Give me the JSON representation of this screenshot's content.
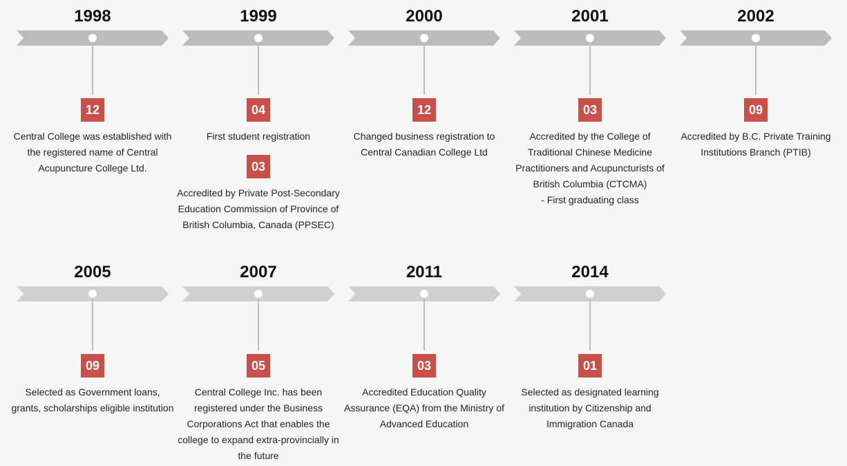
{
  "events": [
    {
      "year": "1998",
      "entries": [
        {
          "month": "12",
          "text": "Central College was established with the registered name of Central Acupuncture College Ltd."
        }
      ]
    },
    {
      "year": "1999",
      "entries": [
        {
          "month": "04",
          "text": "First student registration"
        },
        {
          "month": "03",
          "text": "Accredited by Private Post-Secondary Education Commission of Province of British Columbia, Canada (PPSEC)"
        }
      ]
    },
    {
      "year": "2000",
      "entries": [
        {
          "month": "12",
          "text": "Changed business registration to Central Canadian College Ltd"
        }
      ]
    },
    {
      "year": "2001",
      "entries": [
        {
          "month": "03",
          "text": "Accredited by the College of Traditional Chinese Medicine Practitioners and Acupuncturists of British Columbia (CTCMA)",
          "text2": "- First graduating class"
        }
      ]
    },
    {
      "year": "2002",
      "entries": [
        {
          "month": "09",
          "text": "Accredited by B.C. Private Training Institutions Branch (PTIB)"
        }
      ]
    },
    {
      "year": "2005",
      "entries": [
        {
          "month": "09",
          "text": "Selected as Government loans, grants, scholarships eligible institution"
        }
      ]
    },
    {
      "year": "2007",
      "entries": [
        {
          "month": "05",
          "text": "Central College Inc. has been registered under the Business Corporations Act that enables the college to expand extra-provincially in the future"
        }
      ]
    },
    {
      "year": "2011",
      "entries": [
        {
          "month": "03",
          "text": "Accredited Education Quality Assurance (EQA) from the Ministry of Advanced Education"
        }
      ]
    },
    {
      "year": "2014",
      "entries": [
        {
          "month": "01",
          "text": "Selected as designated learning institution by Citizenship and Immigration Canada"
        }
      ]
    }
  ],
  "colors": {
    "band_row1": "#bcbcbc",
    "band_row2": "#d0d0d0",
    "month_bg": "#c9504a"
  }
}
